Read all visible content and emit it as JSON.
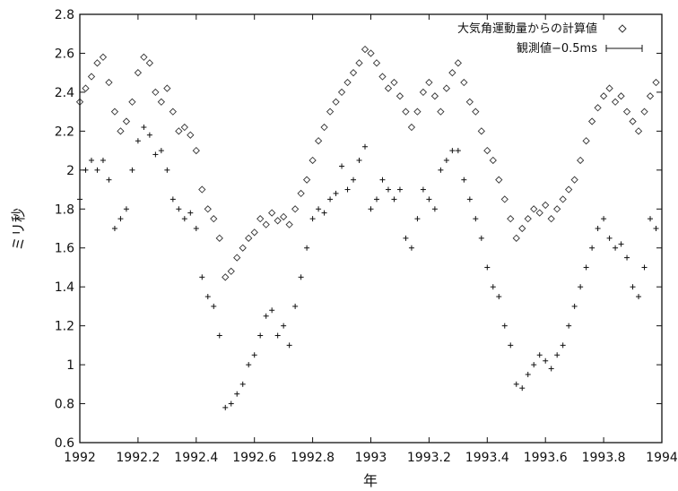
{
  "chart_data": {
    "type": "scatter",
    "title": "",
    "xlabel": "年",
    "ylabel": "ミリ秒",
    "xlim": [
      1992,
      1994
    ],
    "ylim": [
      0.6,
      2.8
    ],
    "xticks": [
      "1992",
      "1992.2",
      "1992.4",
      "1992.6",
      "1992.8",
      "1993",
      "1993.2",
      "1993.4",
      "1993.6",
      "1993.8",
      "1994"
    ],
    "yticks": [
      "0.6",
      "0.8",
      "1",
      "1.2",
      "1.4",
      "1.6",
      "1.8",
      "2",
      "2.2",
      "2.4",
      "2.6",
      "2.8"
    ],
    "grid": false,
    "legend_position": "top-right",
    "series": [
      {
        "name": "大気角運動量からの計算値",
        "marker": "diamond",
        "color": "#333333",
        "x": [
          1992.0,
          1992.02,
          1992.04,
          1992.06,
          1992.08,
          1992.1,
          1992.12,
          1992.14,
          1992.16,
          1992.18,
          1992.2,
          1992.22,
          1992.24,
          1992.26,
          1992.28,
          1992.3,
          1992.32,
          1992.34,
          1992.36,
          1992.38,
          1992.4,
          1992.42,
          1992.44,
          1992.46,
          1992.48,
          1992.5,
          1992.52,
          1992.54,
          1992.56,
          1992.58,
          1992.6,
          1992.62,
          1992.64,
          1992.66,
          1992.68,
          1992.7,
          1992.72,
          1992.74,
          1992.76,
          1992.78,
          1992.8,
          1992.82,
          1992.84,
          1992.86,
          1992.88,
          1992.9,
          1992.92,
          1992.94,
          1992.96,
          1992.98,
          1993.0,
          1993.02,
          1993.04,
          1993.06,
          1993.08,
          1993.1,
          1993.12,
          1993.14,
          1993.16,
          1993.18,
          1993.2,
          1993.22,
          1993.24,
          1993.26,
          1993.28,
          1993.3,
          1993.32,
          1993.34,
          1993.36,
          1993.38,
          1993.4,
          1993.42,
          1993.44,
          1993.46,
          1993.48,
          1993.5,
          1993.52,
          1993.54,
          1993.56,
          1993.58,
          1993.6,
          1993.62,
          1993.64,
          1993.66,
          1993.68,
          1993.7,
          1993.72,
          1993.74,
          1993.76,
          1993.78,
          1993.8,
          1993.82,
          1993.84,
          1993.86,
          1993.88,
          1993.9,
          1993.92,
          1993.94,
          1993.96,
          1993.98
        ],
        "y": [
          2.35,
          2.42,
          2.48,
          2.55,
          2.58,
          2.45,
          2.3,
          2.2,
          2.25,
          2.35,
          2.5,
          2.58,
          2.55,
          2.4,
          2.35,
          2.42,
          2.3,
          2.2,
          2.22,
          2.18,
          2.1,
          1.9,
          1.8,
          1.75,
          1.65,
          1.45,
          1.48,
          1.55,
          1.6,
          1.65,
          1.68,
          1.75,
          1.72,
          1.78,
          1.74,
          1.76,
          1.72,
          1.8,
          1.88,
          1.95,
          2.05,
          2.15,
          2.22,
          2.3,
          2.35,
          2.4,
          2.45,
          2.5,
          2.55,
          2.62,
          2.6,
          2.55,
          2.48,
          2.42,
          2.45,
          2.38,
          2.3,
          2.22,
          2.3,
          2.4,
          2.45,
          2.38,
          2.3,
          2.42,
          2.5,
          2.55,
          2.45,
          2.35,
          2.3,
          2.2,
          2.1,
          2.05,
          1.95,
          1.85,
          1.75,
          1.65,
          1.7,
          1.75,
          1.8,
          1.78,
          1.82,
          1.75,
          1.8,
          1.85,
          1.9,
          1.95,
          2.05,
          2.15,
          2.25,
          2.32,
          2.38,
          2.42,
          2.35,
          2.38,
          2.3,
          2.25,
          2.2,
          2.3,
          2.38,
          2.45
        ]
      },
      {
        "name": "観測値−0.5ms",
        "marker": "errorbar",
        "color": "#111111",
        "x": [
          1992.0,
          1992.02,
          1992.04,
          1992.06,
          1992.08,
          1992.1,
          1992.12,
          1992.14,
          1992.16,
          1992.18,
          1992.2,
          1992.22,
          1992.24,
          1992.26,
          1992.28,
          1992.3,
          1992.32,
          1992.34,
          1992.36,
          1992.38,
          1992.4,
          1992.42,
          1992.44,
          1992.46,
          1992.48,
          1992.5,
          1992.52,
          1992.54,
          1992.56,
          1992.58,
          1992.6,
          1992.62,
          1992.64,
          1992.66,
          1992.68,
          1992.7,
          1992.72,
          1992.74,
          1992.76,
          1992.78,
          1992.8,
          1992.82,
          1992.84,
          1992.86,
          1992.88,
          1992.9,
          1992.92,
          1992.94,
          1992.96,
          1992.98,
          1993.0,
          1993.02,
          1993.04,
          1993.06,
          1993.08,
          1993.1,
          1993.12,
          1993.14,
          1993.16,
          1993.18,
          1993.2,
          1993.22,
          1993.24,
          1993.26,
          1993.28,
          1993.3,
          1993.32,
          1993.34,
          1993.36,
          1993.38,
          1993.4,
          1993.42,
          1993.44,
          1993.46,
          1993.48,
          1993.5,
          1993.52,
          1993.54,
          1993.56,
          1993.58,
          1993.6,
          1993.62,
          1993.64,
          1993.66,
          1993.68,
          1993.7,
          1993.72,
          1993.74,
          1993.76,
          1993.78,
          1993.8,
          1993.82,
          1993.84,
          1993.86,
          1993.88,
          1993.9,
          1993.92,
          1993.94,
          1993.96,
          1993.98
        ],
        "y": [
          1.85,
          2.0,
          2.05,
          2.0,
          2.05,
          1.95,
          1.7,
          1.75,
          1.8,
          2.0,
          2.15,
          2.22,
          2.18,
          2.08,
          2.1,
          2.0,
          1.85,
          1.8,
          1.75,
          1.78,
          1.7,
          1.45,
          1.35,
          1.3,
          1.15,
          0.78,
          0.8,
          0.85,
          0.9,
          1.0,
          1.05,
          1.15,
          1.25,
          1.28,
          1.15,
          1.2,
          1.1,
          1.3,
          1.45,
          1.6,
          1.75,
          1.8,
          1.78,
          1.85,
          1.88,
          2.02,
          1.9,
          1.95,
          2.05,
          2.12,
          1.8,
          1.85,
          1.95,
          1.9,
          1.85,
          1.9,
          1.65,
          1.6,
          1.75,
          1.9,
          1.85,
          1.8,
          2.0,
          2.05,
          2.1,
          2.1,
          1.95,
          1.85,
          1.75,
          1.65,
          1.5,
          1.4,
          1.35,
          1.2,
          1.1,
          0.9,
          0.88,
          0.95,
          1.0,
          1.05,
          1.02,
          0.98,
          1.05,
          1.1,
          1.2,
          1.3,
          1.4,
          1.5,
          1.6,
          1.7,
          1.75,
          1.65,
          1.6,
          1.62,
          1.55,
          1.4,
          1.35,
          1.5,
          1.75,
          1.7
        ]
      }
    ]
  }
}
